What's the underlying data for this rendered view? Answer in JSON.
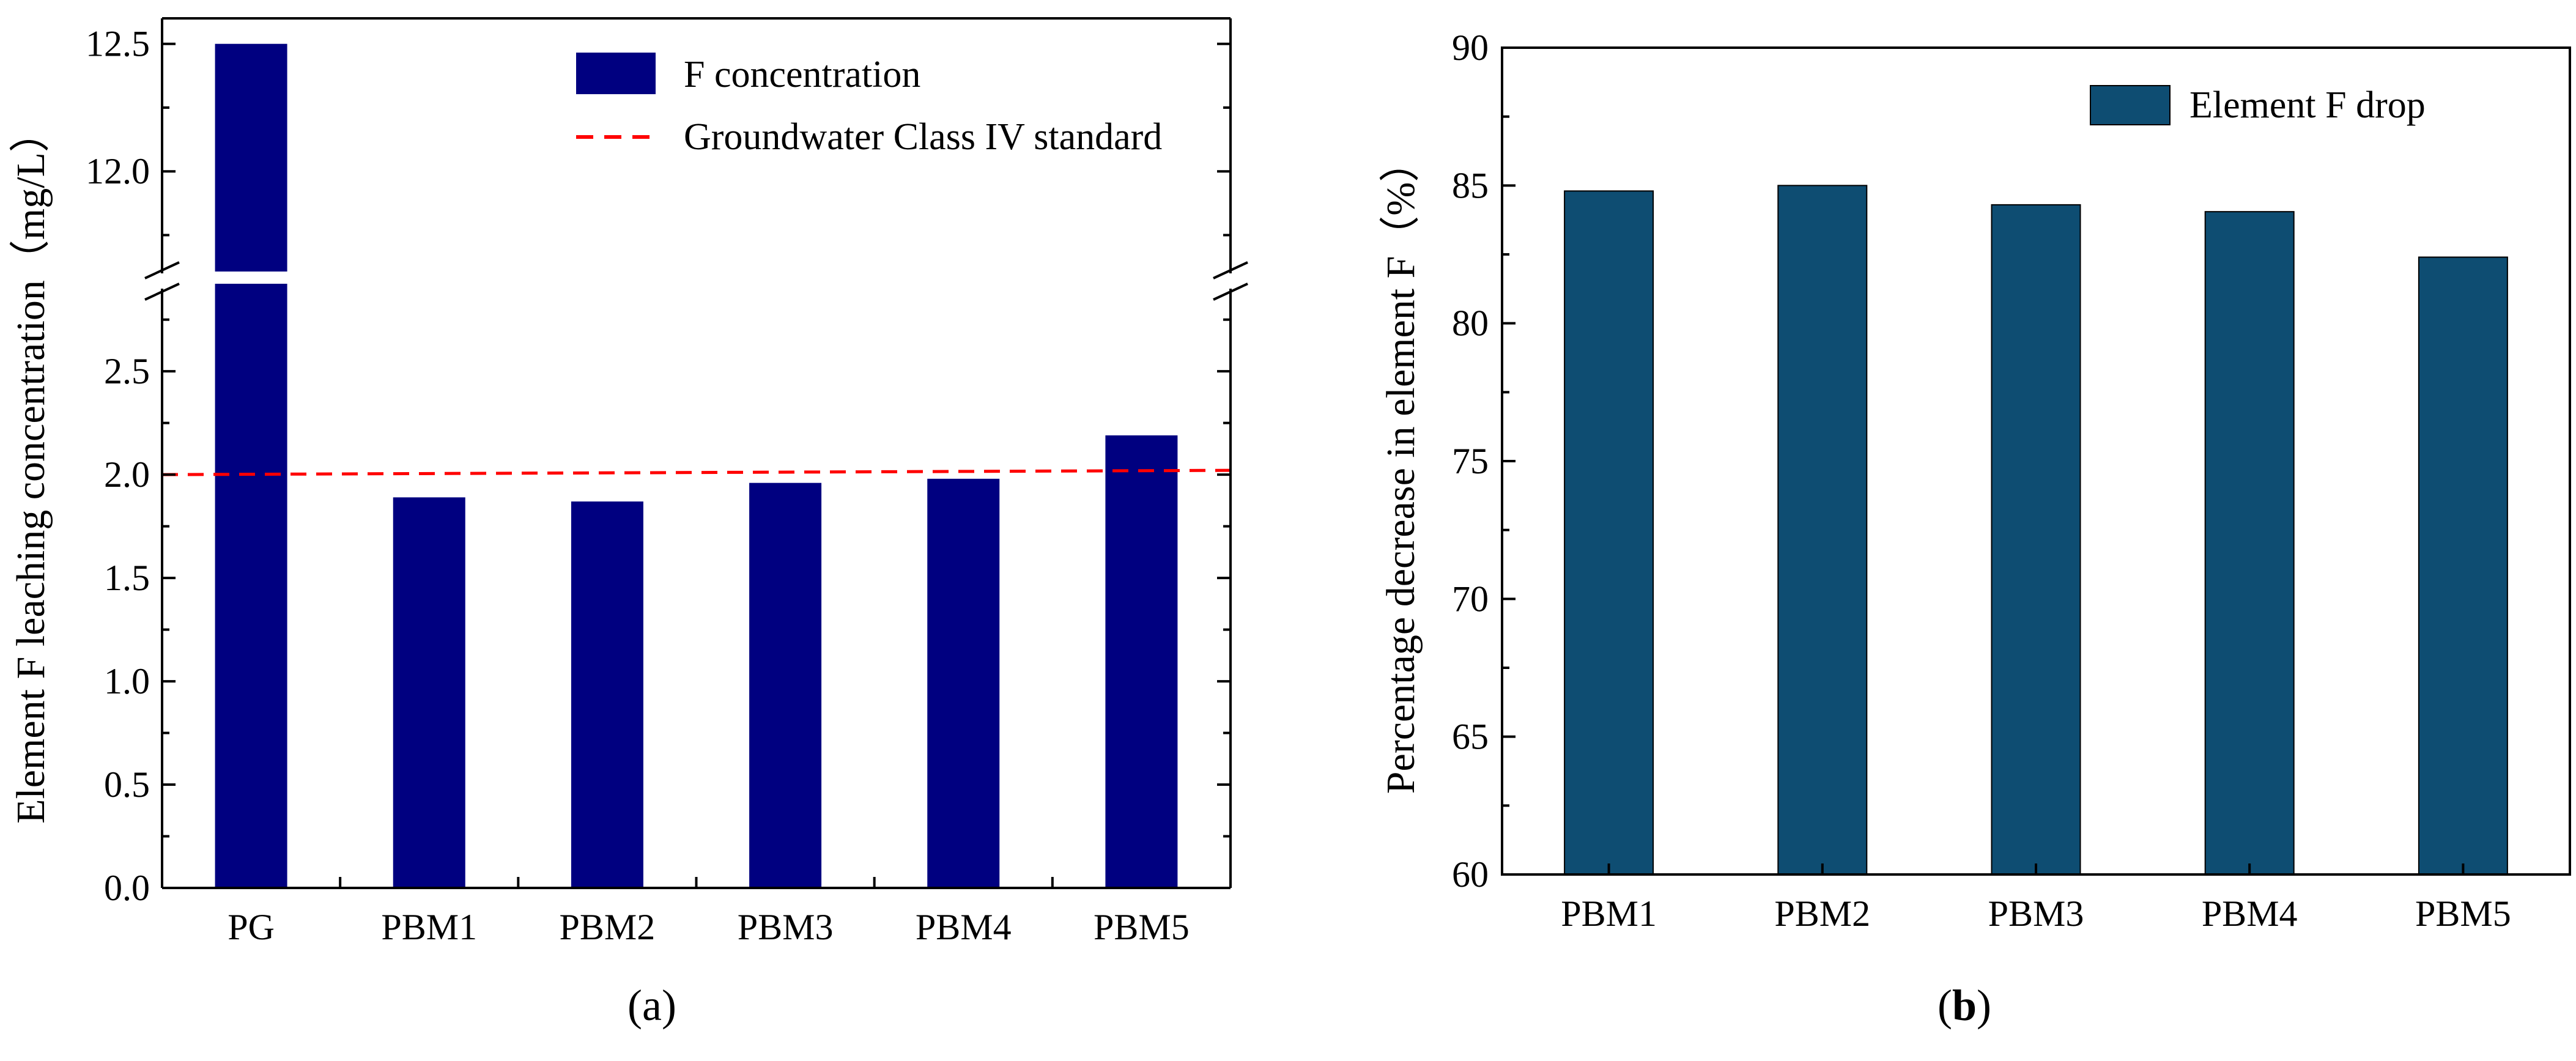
{
  "chart_data": [
    {
      "type": "bar",
      "panel": "a",
      "panel_label": {
        "open": "(",
        "letter": "a",
        "close": ")"
      },
      "title": "",
      "ylabel": "Element F leaching concentration（mg/L）",
      "xlabel": "",
      "categories": [
        "PG",
        "PBM1",
        "PBM2",
        "PBM3",
        "PBM4",
        "PBM5"
      ],
      "series": [
        {
          "name": "F concentration",
          "color": "#000080",
          "values": [
            12.5,
            1.89,
            1.87,
            1.96,
            1.98,
            2.19
          ]
        }
      ],
      "reference_line": {
        "name": "Groundwater Class IV standard",
        "value": 2.0,
        "color": "#ff0000",
        "style": "dashed"
      },
      "axis_break": {
        "lower_range": [
          0,
          2.9
        ],
        "upper_range": [
          11.6,
          12.6
        ]
      },
      "yticks_lower": [
        0.0,
        0.5,
        1.0,
        1.5,
        2.0,
        2.5
      ],
      "yticks_upper": [
        12.0,
        12.5
      ],
      "ytick_labels_lower": [
        "0.0",
        "0.5",
        "1.0",
        "1.5",
        "2.0",
        "2.5"
      ],
      "ytick_labels_upper": [
        "12.0",
        "12.5"
      ],
      "legend_position": "top-right"
    },
    {
      "type": "bar",
      "panel": "b",
      "panel_label": {
        "open": "(",
        "letter": "b",
        "close": ")"
      },
      "title": "",
      "ylabel": "Percentage decrease in element F（%）",
      "xlabel": "",
      "categories": [
        "PBM1",
        "PBM2",
        "PBM3",
        "PBM4",
        "PBM5"
      ],
      "series": [
        {
          "name": "Element F drop",
          "color": "#0e4d72",
          "values": [
            84.8,
            85.0,
            84.3,
            84.05,
            82.4
          ]
        }
      ],
      "ylim": [
        60,
        90
      ],
      "yticks": [
        60,
        65,
        70,
        75,
        80,
        85,
        90
      ],
      "ytick_labels": [
        "60",
        "65",
        "70",
        "75",
        "80",
        "85",
        "90"
      ],
      "legend_position": "top-right"
    }
  ]
}
